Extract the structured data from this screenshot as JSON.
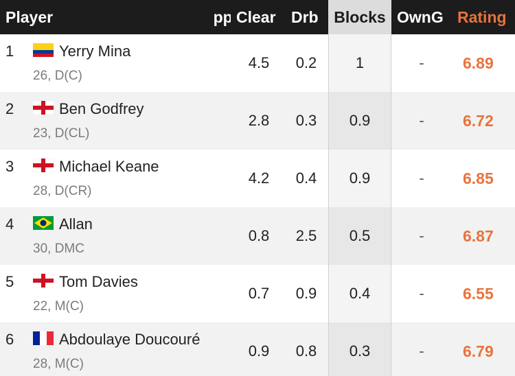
{
  "header": {
    "player": "Player",
    "apps_truncated": "Apps",
    "clear": "Clear",
    "drb": "Drb",
    "blocks": "Blocks",
    "owng": "OwnG",
    "rating": "Rating"
  },
  "colors": {
    "header_bg": "#1c1c1c",
    "rating_accent": "#e8733c",
    "highlight_col": "#dcdcdc"
  },
  "rows": [
    {
      "rank": "1",
      "flag": "colombia-flag-icon",
      "name": "Yerry Mina",
      "meta": "26, D(C)",
      "clear": "4.5",
      "drb": "0.2",
      "blocks": "1",
      "owng": "-",
      "rating": "6.89"
    },
    {
      "rank": "2",
      "flag": "england-flag-icon",
      "name": "Ben Godfrey",
      "meta": "23, D(CL)",
      "clear": "2.8",
      "drb": "0.3",
      "blocks": "0.9",
      "owng": "-",
      "rating": "6.72"
    },
    {
      "rank": "3",
      "flag": "england-flag-icon",
      "name": "Michael Keane",
      "meta": "28, D(CR)",
      "clear": "4.2",
      "drb": "0.4",
      "blocks": "0.9",
      "owng": "-",
      "rating": "6.85"
    },
    {
      "rank": "4",
      "flag": "brazil-flag-icon",
      "name": "Allan",
      "meta": "30, DMC",
      "clear": "0.8",
      "drb": "2.5",
      "blocks": "0.5",
      "owng": "-",
      "rating": "6.87"
    },
    {
      "rank": "5",
      "flag": "england-flag-icon",
      "name": "Tom Davies",
      "meta": "22, M(C)",
      "clear": "0.7",
      "drb": "0.9",
      "blocks": "0.4",
      "owng": "-",
      "rating": "6.55"
    },
    {
      "rank": "6",
      "flag": "france-flag-icon",
      "name": "Abdoulaye Doucouré",
      "meta": "28, M(C)",
      "clear": "0.9",
      "drb": "0.8",
      "blocks": "0.3",
      "owng": "-",
      "rating": "6.79"
    }
  ]
}
